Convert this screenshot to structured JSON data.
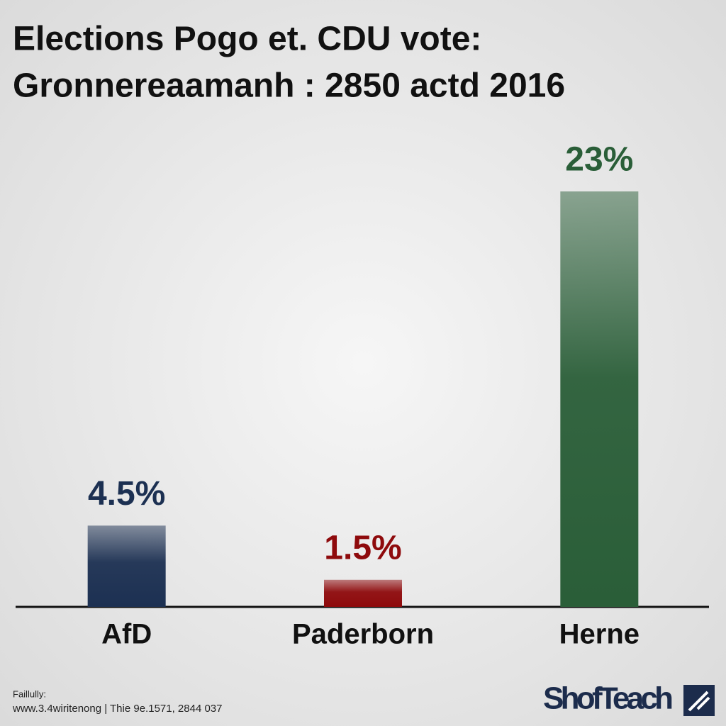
{
  "chart_data": {
    "type": "bar",
    "title": [
      "Elections Pogo et. CDU vote:",
      "Gronnereaamanh : 2850 actd 2016"
    ],
    "categories": [
      "AfD",
      "Paderborn",
      "Herne"
    ],
    "values": [
      4.5,
      1.5,
      23
    ],
    "value_labels": [
      "4.5%",
      "1.5%",
      "23%"
    ],
    "colors": [
      "#1c3052",
      "#8e0a0c",
      "#2a5e38"
    ],
    "source": [
      "Faillully:",
      "www.3.4wiritenong | Thie 9e.1571, 2844 037"
    ],
    "brand": "ShofTeach"
  }
}
